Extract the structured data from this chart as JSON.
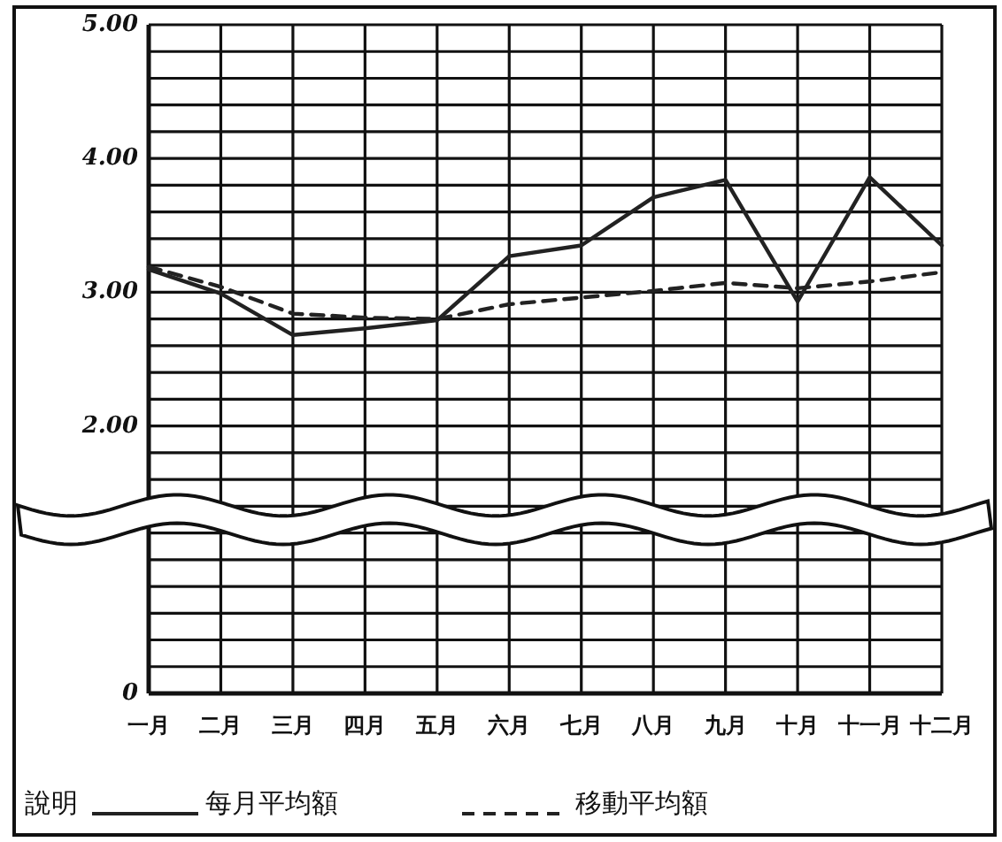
{
  "chart_data": {
    "type": "line",
    "categories": [
      "一月",
      "二月",
      "三月",
      "四月",
      "五月",
      "六月",
      "七月",
      "八月",
      "九月",
      "十月",
      "十一月",
      "十二月"
    ],
    "series": [
      {
        "name": "每月平均額",
        "color": "#222222",
        "line_style": "solid",
        "values": [
          3.17,
          2.99,
          2.68,
          2.73,
          2.79,
          3.27,
          3.35,
          3.71,
          3.84,
          2.93,
          3.86,
          3.35
        ]
      },
      {
        "name": "移動平均額",
        "color": "#222222",
        "line_style": "dashed",
        "values": [
          3.19,
          3.04,
          2.84,
          2.81,
          2.8,
          2.91,
          2.96,
          3.01,
          3.07,
          3.03,
          3.08,
          3.15
        ]
      }
    ],
    "ylim": [
      0,
      5
    ],
    "yticks": [
      {
        "value": 0,
        "label": "0"
      },
      {
        "value": 0.2,
        "label": null
      },
      {
        "value": 0.4,
        "label": null
      },
      {
        "value": 0.6,
        "label": null
      },
      {
        "value": 0.8,
        "label": null
      },
      {
        "value": 1,
        "label": null
      },
      {
        "value": 1.2,
        "label": null
      },
      {
        "value": 1.4,
        "label": null
      },
      {
        "value": 1.6,
        "label": null
      },
      {
        "value": 1.8,
        "label": null
      },
      {
        "value": 2,
        "label": "2.00"
      },
      {
        "value": 2.2,
        "label": null
      },
      {
        "value": 2.4,
        "label": null
      },
      {
        "value": 2.6,
        "label": null
      },
      {
        "value": 2.8,
        "label": null
      },
      {
        "value": 3,
        "label": "3.00"
      },
      {
        "value": 3.2,
        "label": null
      },
      {
        "value": 3.4,
        "label": null
      },
      {
        "value": 3.6,
        "label": null
      },
      {
        "value": 3.8,
        "label": null
      },
      {
        "value": 4,
        "label": "4.00"
      },
      {
        "value": 4.2,
        "label": null
      },
      {
        "value": 4.4,
        "label": null
      },
      {
        "value": 4.6,
        "label": null
      },
      {
        "value": 4.8,
        "label": null
      },
      {
        "value": 5,
        "label": "5.00"
      }
    ],
    "grid": true,
    "legend": "bottom",
    "legend_title": "說明",
    "marker": "none"
  }
}
